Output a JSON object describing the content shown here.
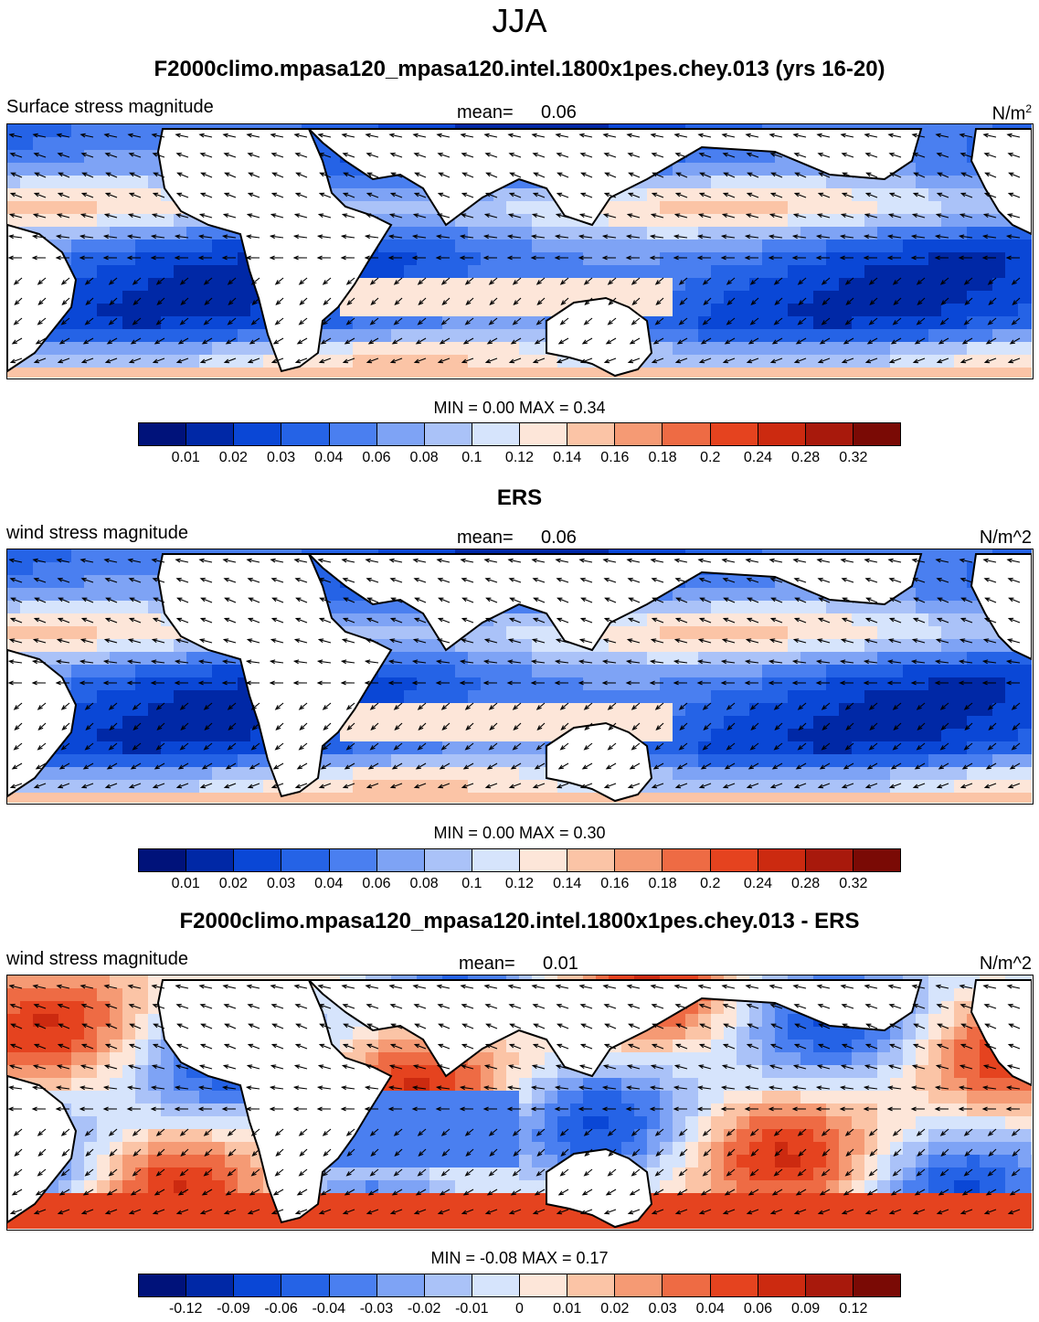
{
  "title": "JJA",
  "colors": {
    "seq": [
      "#00127a",
      "#0028a6",
      "#0a47d6",
      "#2563e6",
      "#4a7ff0",
      "#7ea3f5",
      "#aac2f8",
      "#d6e4fc",
      "#fde6d9",
      "#fbc4a6",
      "#f59a74",
      "#ee6b44",
      "#e5431f",
      "#cc2a10",
      "#a8190c",
      "#7a0a05"
    ],
    "diff": [
      "#00127a",
      "#0028a6",
      "#0a47d6",
      "#2563e6",
      "#4a7ff0",
      "#7ea3f5",
      "#aac2f8",
      "#d6e4fc",
      "#fde6d9",
      "#fbc4a6",
      "#f59a74",
      "#ee6b44",
      "#e5431f",
      "#cc2a10",
      "#a8190c",
      "#7a0a05"
    ]
  },
  "panels": [
    {
      "title": "F2000climo.mpasa120_mpasa120.intel.1800x1pes.chey.013 (yrs 16-20)",
      "left_label": "Surface stress magnitude",
      "mean_label": "mean=",
      "mean_value": "0.06",
      "units": "N/m",
      "units_sup": "2",
      "minmax": "MIN =   0.00 MAX =   0.34",
      "colorbar": {
        "palette": "seq",
        "ticks": [
          "0.01",
          "0.02",
          "0.03",
          "0.04",
          "0.06",
          "0.08",
          "0.1",
          "0.12",
          "0.14",
          "0.16",
          "0.18",
          "0.2",
          "0.24",
          "0.28",
          "0.32"
        ]
      }
    },
    {
      "title": "ERS",
      "left_label": "wind stress magnitude",
      "mean_label": "mean=",
      "mean_value": "0.06",
      "units": "N/m^2",
      "units_sup": "",
      "minmax": "MIN =   0.00 MAX =   0.30",
      "colorbar": {
        "palette": "seq",
        "ticks": [
          "0.01",
          "0.02",
          "0.03",
          "0.04",
          "0.06",
          "0.08",
          "0.1",
          "0.12",
          "0.14",
          "0.16",
          "0.18",
          "0.2",
          "0.24",
          "0.28",
          "0.32"
        ]
      }
    },
    {
      "title": "F2000climo.mpasa120_mpasa120.intel.1800x1pes.chey.013 - ERS",
      "left_label": "wind stress magnitude",
      "mean_label": "mean=",
      "mean_value": "0.01",
      "units": "N/m^2",
      "units_sup": "",
      "minmax": "MIN =  -0.08 MAX =   0.17",
      "colorbar": {
        "palette": "diff",
        "ticks": [
          "-0.12",
          "-0.09",
          "-0.06",
          "-0.04",
          "-0.03",
          "-0.02",
          "-0.01",
          "0",
          "0.01",
          "0.02",
          "0.03",
          "0.04",
          "0.06",
          "0.09",
          "0.12"
        ]
      }
    }
  ]
}
